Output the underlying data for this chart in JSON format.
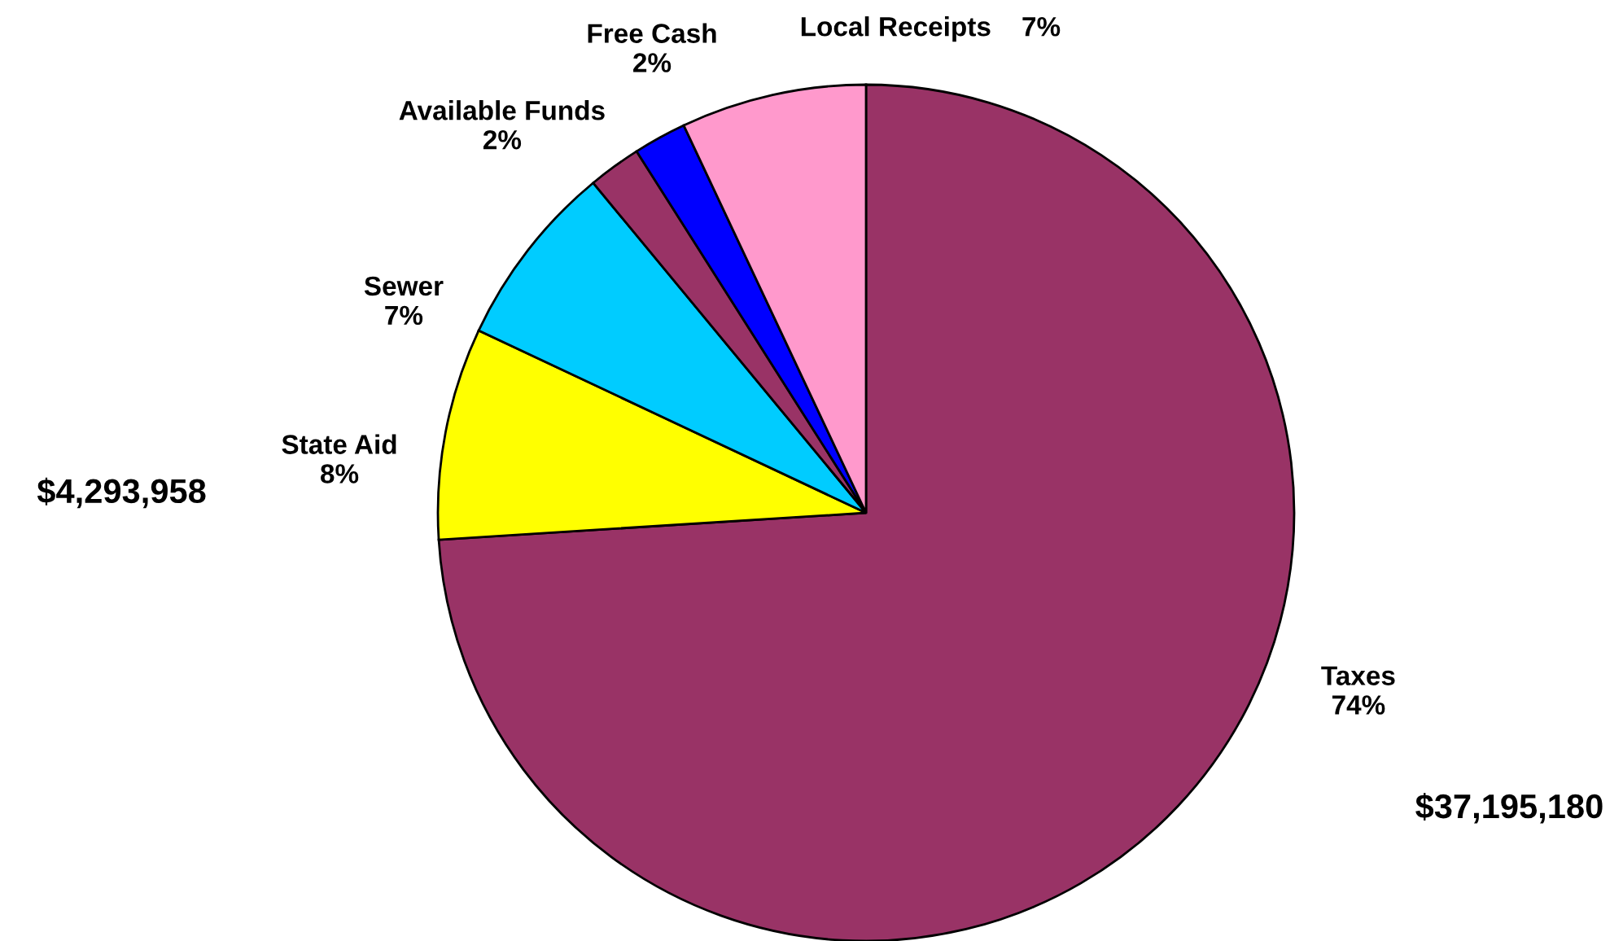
{
  "chart_data": {
    "type": "pie",
    "categories": [
      "Taxes",
      "State Aid",
      "Sewer",
      "Available Funds",
      "Free Cash",
      "Local Receipts"
    ],
    "values": [
      74,
      8,
      7,
      2,
      2,
      7
    ],
    "value_labels": [
      "74%",
      "8%",
      "7%",
      "2%",
      "2%",
      "7%"
    ],
    "colors": [
      "#993366",
      "#ffff00",
      "#00ccff",
      "#993366",
      "#0000ff",
      "#ff99cc"
    ],
    "annotations": [
      "$4,293,958",
      "$37,195,180"
    ]
  }
}
